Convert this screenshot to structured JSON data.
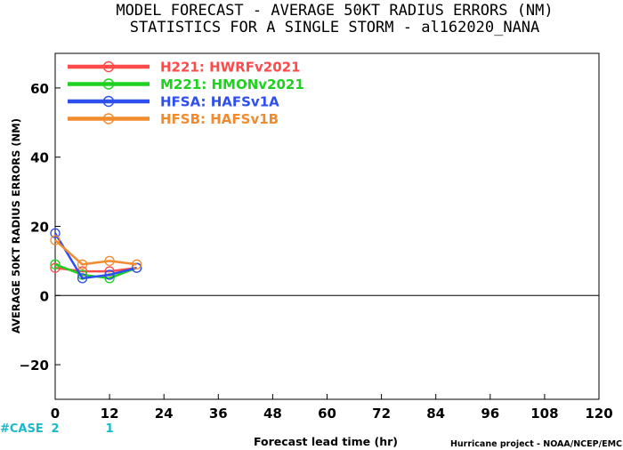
{
  "chart_data": {
    "type": "line",
    "title_line1": "MODEL FORECAST - AVERAGE 50KT RADIUS ERRORS (NM)",
    "title_line2": "STATISTICS FOR A SINGLE STORM - al162020_NANA",
    "xlabel": "Forecast lead time (hr)",
    "ylabel": "AVERAGE 50KT RADIUS ERRORS (NM)",
    "credit": "Hurricane project - NOAA/NCEP/EMC",
    "xlim": [
      0,
      120
    ],
    "ylim": [
      -30,
      70
    ],
    "x_ticks": [
      0,
      12,
      24,
      36,
      48,
      60,
      72,
      84,
      96,
      108,
      120
    ],
    "y_ticks": [
      -20,
      0,
      20,
      40,
      60
    ],
    "grid": false,
    "zero_line": true,
    "legend_position": "top-left",
    "case_label": "#CASE",
    "cases": [
      {
        "x": 0,
        "count": "2"
      },
      {
        "x": 12,
        "count": "1"
      }
    ],
    "series": [
      {
        "name": "H221: HWRFv2021",
        "color": "#ff4a4a",
        "x": [
          0,
          6,
          12,
          18
        ],
        "y": [
          8,
          7,
          7,
          8
        ]
      },
      {
        "name": "M221: HMONv2021",
        "color": "#1fd11f",
        "x": [
          0,
          6,
          12,
          18
        ],
        "y": [
          9,
          6,
          5,
          8
        ]
      },
      {
        "name": "HFSA: HAFSv1A",
        "color": "#2d4fee",
        "x": [
          0,
          6,
          12,
          18
        ],
        "y": [
          18,
          5,
          6,
          8
        ]
      },
      {
        "name": "HFSB: HAFSv1B",
        "color": "#f28a2e",
        "x": [
          0,
          6,
          12,
          18
        ],
        "y": [
          16,
          9,
          10,
          9
        ]
      }
    ]
  }
}
